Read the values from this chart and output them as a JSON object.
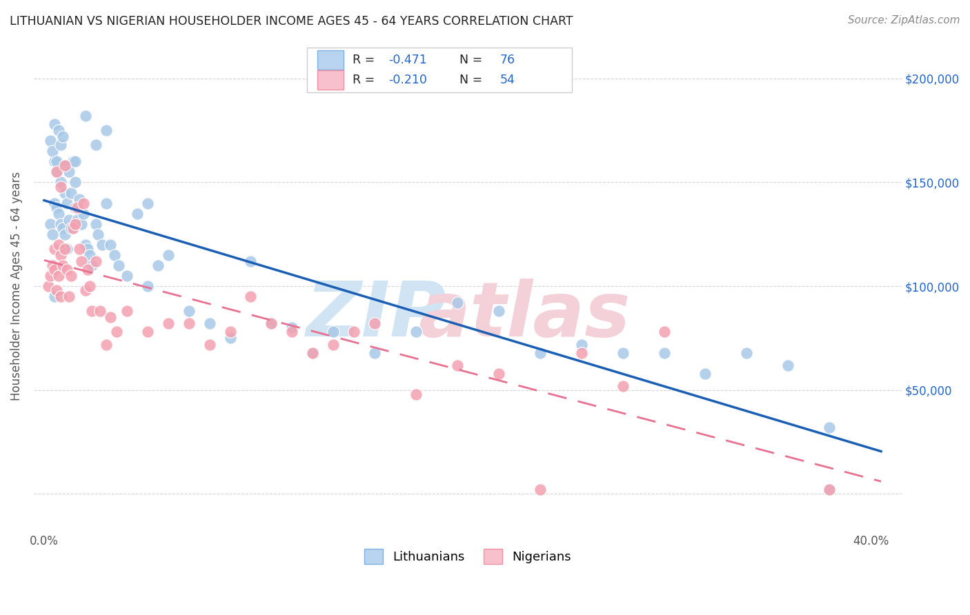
{
  "title": "LITHUANIAN VS NIGERIAN HOUSEHOLDER INCOME AGES 45 - 64 YEARS CORRELATION CHART",
  "source": "Source: ZipAtlas.com",
  "ylabel": "Householder Income Ages 45 - 64 years",
  "xlim": [
    -0.005,
    0.415
  ],
  "ylim": [
    -18000,
    218000
  ],
  "xticks": [
    0.0,
    0.05,
    0.1,
    0.15,
    0.2,
    0.25,
    0.3,
    0.35,
    0.4
  ],
  "xticklabels": [
    "0.0%",
    "",
    "",
    "",
    "",
    "",
    "",
    "",
    "40.0%"
  ],
  "yticks_right": [
    50000,
    100000,
    150000,
    200000
  ],
  "ytick_right_labels": [
    "$50,000",
    "$100,000",
    "$150,000",
    "$200,000"
  ],
  "legend_r1": "-0.471",
  "legend_n1": "76",
  "legend_r2": "-0.210",
  "legend_n2": "54",
  "blue_marker": "#a8c8e8",
  "pink_marker": "#f4a0b0",
  "line_blue": "#1a5fb4",
  "line_pink": "#e87090",
  "watermark_blue": "#d0e4f4",
  "watermark_pink": "#f4d0d8",
  "background": "#ffffff",
  "grid_color": "#c8c8c8",
  "lith_x": [
    0.003,
    0.004,
    0.005,
    0.005,
    0.006,
    0.006,
    0.007,
    0.008,
    0.008,
    0.009,
    0.01,
    0.01,
    0.011,
    0.011,
    0.012,
    0.013,
    0.013,
    0.014,
    0.015,
    0.015,
    0.016,
    0.017,
    0.018,
    0.019,
    0.02,
    0.021,
    0.022,
    0.023,
    0.025,
    0.026,
    0.028,
    0.03,
    0.032,
    0.034,
    0.036,
    0.04,
    0.045,
    0.05,
    0.055,
    0.06,
    0.07,
    0.08,
    0.09,
    0.1,
    0.11,
    0.12,
    0.13,
    0.14,
    0.16,
    0.18,
    0.2,
    0.22,
    0.24,
    0.26,
    0.28,
    0.3,
    0.32,
    0.34,
    0.36,
    0.38,
    0.003,
    0.004,
    0.005,
    0.006,
    0.007,
    0.008,
    0.009,
    0.01,
    0.012,
    0.015,
    0.02,
    0.025,
    0.03,
    0.05,
    0.38,
    0.005
  ],
  "lith_y": [
    130000,
    125000,
    140000,
    160000,
    138000,
    155000,
    135000,
    130000,
    150000,
    128000,
    145000,
    125000,
    140000,
    118000,
    132000,
    128000,
    145000,
    160000,
    138000,
    150000,
    132000,
    142000,
    130000,
    135000,
    120000,
    118000,
    115000,
    110000,
    130000,
    125000,
    120000,
    140000,
    120000,
    115000,
    110000,
    105000,
    135000,
    140000,
    110000,
    115000,
    88000,
    82000,
    75000,
    112000,
    82000,
    80000,
    68000,
    78000,
    68000,
    78000,
    92000,
    88000,
    68000,
    72000,
    68000,
    68000,
    58000,
    68000,
    62000,
    32000,
    170000,
    165000,
    178000,
    160000,
    175000,
    168000,
    172000,
    158000,
    155000,
    160000,
    182000,
    168000,
    175000,
    100000,
    2000,
    95000
  ],
  "nig_x": [
    0.002,
    0.003,
    0.004,
    0.005,
    0.005,
    0.006,
    0.007,
    0.007,
    0.008,
    0.008,
    0.009,
    0.01,
    0.011,
    0.012,
    0.013,
    0.014,
    0.015,
    0.016,
    0.017,
    0.018,
    0.019,
    0.02,
    0.021,
    0.022,
    0.023,
    0.025,
    0.027,
    0.03,
    0.032,
    0.035,
    0.04,
    0.05,
    0.06,
    0.07,
    0.08,
    0.09,
    0.1,
    0.11,
    0.12,
    0.13,
    0.14,
    0.15,
    0.16,
    0.18,
    0.2,
    0.22,
    0.24,
    0.26,
    0.28,
    0.3,
    0.006,
    0.008,
    0.01,
    0.38
  ],
  "nig_y": [
    100000,
    105000,
    110000,
    108000,
    118000,
    98000,
    120000,
    105000,
    115000,
    95000,
    110000,
    118000,
    108000,
    95000,
    105000,
    128000,
    130000,
    138000,
    118000,
    112000,
    140000,
    98000,
    108000,
    100000,
    88000,
    112000,
    88000,
    72000,
    85000,
    78000,
    88000,
    78000,
    82000,
    82000,
    72000,
    78000,
    95000,
    82000,
    78000,
    68000,
    72000,
    78000,
    82000,
    48000,
    62000,
    58000,
    2000,
    68000,
    52000,
    78000,
    155000,
    148000,
    158000,
    2000
  ]
}
